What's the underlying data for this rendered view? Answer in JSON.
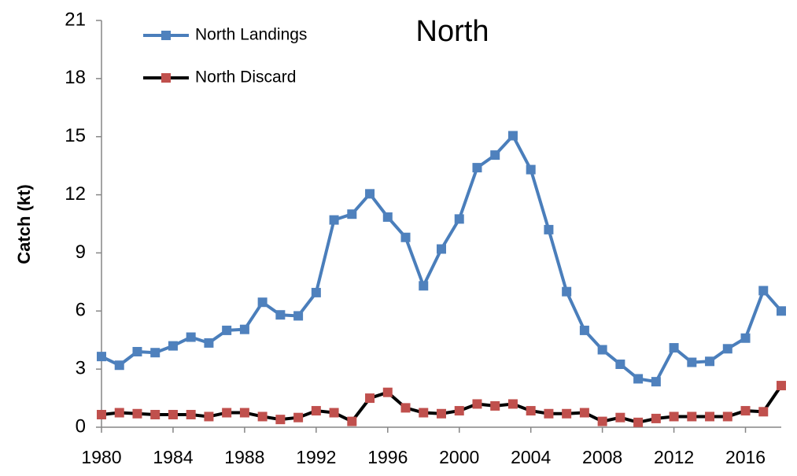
{
  "chart_data": {
    "type": "line",
    "title": "North",
    "ylabel": "Catch (kt)",
    "x": [
      1980,
      1981,
      1982,
      1983,
      1984,
      1985,
      1986,
      1987,
      1988,
      1989,
      1990,
      1991,
      1992,
      1993,
      1994,
      1995,
      1996,
      1997,
      1998,
      1999,
      2000,
      2001,
      2002,
      2003,
      2004,
      2005,
      2006,
      2007,
      2008,
      2009,
      2010,
      2011,
      2012,
      2013,
      2014,
      2015,
      2016,
      2017,
      2018
    ],
    "series": [
      {
        "name": "North Landings",
        "color": "#4a7ebb",
        "marker_color": "#4f81bd",
        "values": [
          3.65,
          3.2,
          3.9,
          3.85,
          4.2,
          4.65,
          4.35,
          5.0,
          5.05,
          6.45,
          5.8,
          5.75,
          6.95,
          10.7,
          11.0,
          12.05,
          10.85,
          9.8,
          7.3,
          9.2,
          10.75,
          13.4,
          14.05,
          15.05,
          13.3,
          10.2,
          7.0,
          5.0,
          4.0,
          3.25,
          2.5,
          2.35,
          4.1,
          3.35,
          3.4,
          4.05,
          4.6,
          7.05,
          6.0
        ]
      },
      {
        "name": "North Discard",
        "color": "#000000",
        "marker_color": "#c0504d",
        "values": [
          0.65,
          0.75,
          0.7,
          0.65,
          0.65,
          0.65,
          0.55,
          0.75,
          0.75,
          0.55,
          0.4,
          0.5,
          0.85,
          0.75,
          0.3,
          1.5,
          1.8,
          1.0,
          0.75,
          0.7,
          0.85,
          1.2,
          1.1,
          1.2,
          0.85,
          0.7,
          0.7,
          0.75,
          0.3,
          0.5,
          0.25,
          0.45,
          0.55,
          0.55,
          0.55,
          0.55,
          0.85,
          0.8,
          2.15
        ]
      }
    ],
    "xlim": [
      1980,
      2018
    ],
    "xticks": [
      1980,
      1984,
      1988,
      1992,
      1996,
      2000,
      2004,
      2008,
      2012,
      2016
    ],
    "ylim": [
      0,
      21
    ],
    "yticks": [
      0,
      3,
      6,
      9,
      12,
      15,
      18,
      21
    ],
    "grid": false,
    "legend": "upper left"
  }
}
